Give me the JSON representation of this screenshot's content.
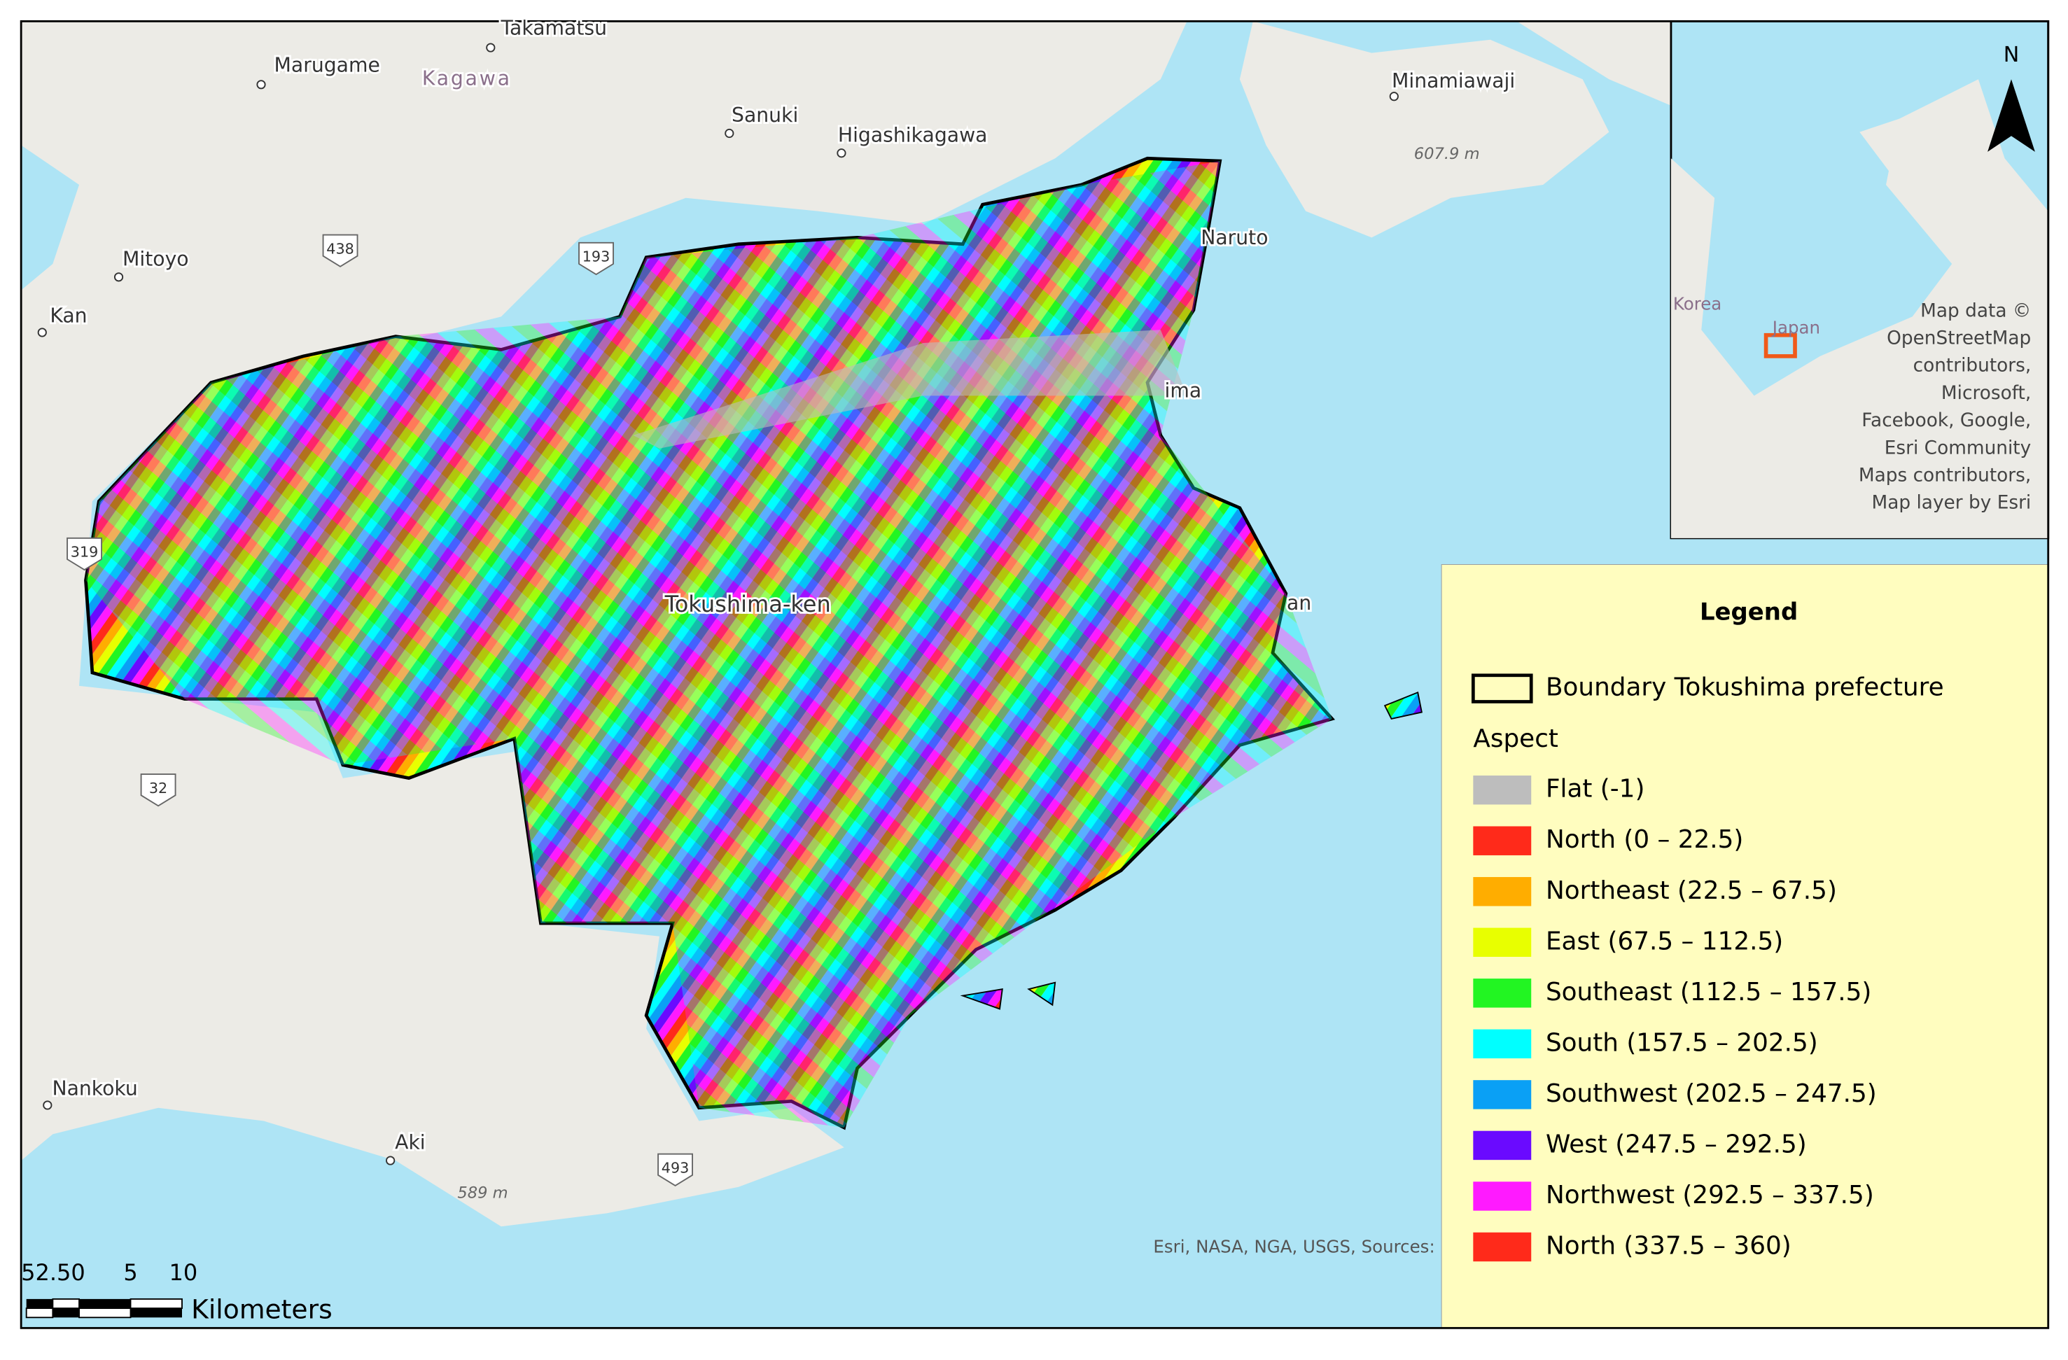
{
  "map": {
    "place_labels": [
      "Takamatsu",
      "Marugame",
      "Kagawa",
      "Sanuki",
      "Higashikagawa",
      "Minamiawaji",
      "Mitoyo",
      "Kan",
      "Naruto",
      "ima",
      "Tokushima-ken",
      "an",
      "Nankoku",
      "Aki"
    ],
    "road_shields": [
      "438",
      "193",
      "319",
      "32",
      "493"
    ],
    "elevation_labels": [
      "607.9 m",
      "589 m"
    ],
    "attribution": "Esri, NASA, NGA, USGS, Sources:",
    "scale_bar": {
      "labels": [
        "52.50",
        "5",
        "10"
      ],
      "unit": "Kilometers"
    }
  },
  "inset": {
    "labels": [
      "Korea",
      "Japan"
    ],
    "north": "N",
    "attribution": [
      "Map data ©",
      "OpenStreetMap",
      "contributors,",
      "Microsoft,",
      "Facebook, Google,",
      "Esri Community",
      "Maps contributors,",
      "Map layer by Esri"
    ]
  },
  "legend": {
    "title": "Legend",
    "boundary": "Boundary Tokushima prefecture",
    "group": "Aspect",
    "items": [
      {
        "label": "Flat (-1)",
        "color": "#bdbdbd"
      },
      {
        "label": "North (0 – 22.5)",
        "color": "#ff2a1a"
      },
      {
        "label": "Northeast (22.5 – 67.5)",
        "color": "#ffad00"
      },
      {
        "label": "East (67.5 – 112.5)",
        "color": "#e8ff00"
      },
      {
        "label": "Southeast (112.5 – 157.5)",
        "color": "#22f522"
      },
      {
        "label": "South (157.5 – 202.5)",
        "color": "#00ffff"
      },
      {
        "label": "Southwest (202.5 – 247.5)",
        "color": "#0aa0f5"
      },
      {
        "label": "West (247.5 – 292.5)",
        "color": "#6a0aff"
      },
      {
        "label": "Northwest (292.5 – 337.5)",
        "color": "#ff1aff"
      },
      {
        "label": "North (337.5 – 360)",
        "color": "#ff2a1a"
      }
    ]
  }
}
